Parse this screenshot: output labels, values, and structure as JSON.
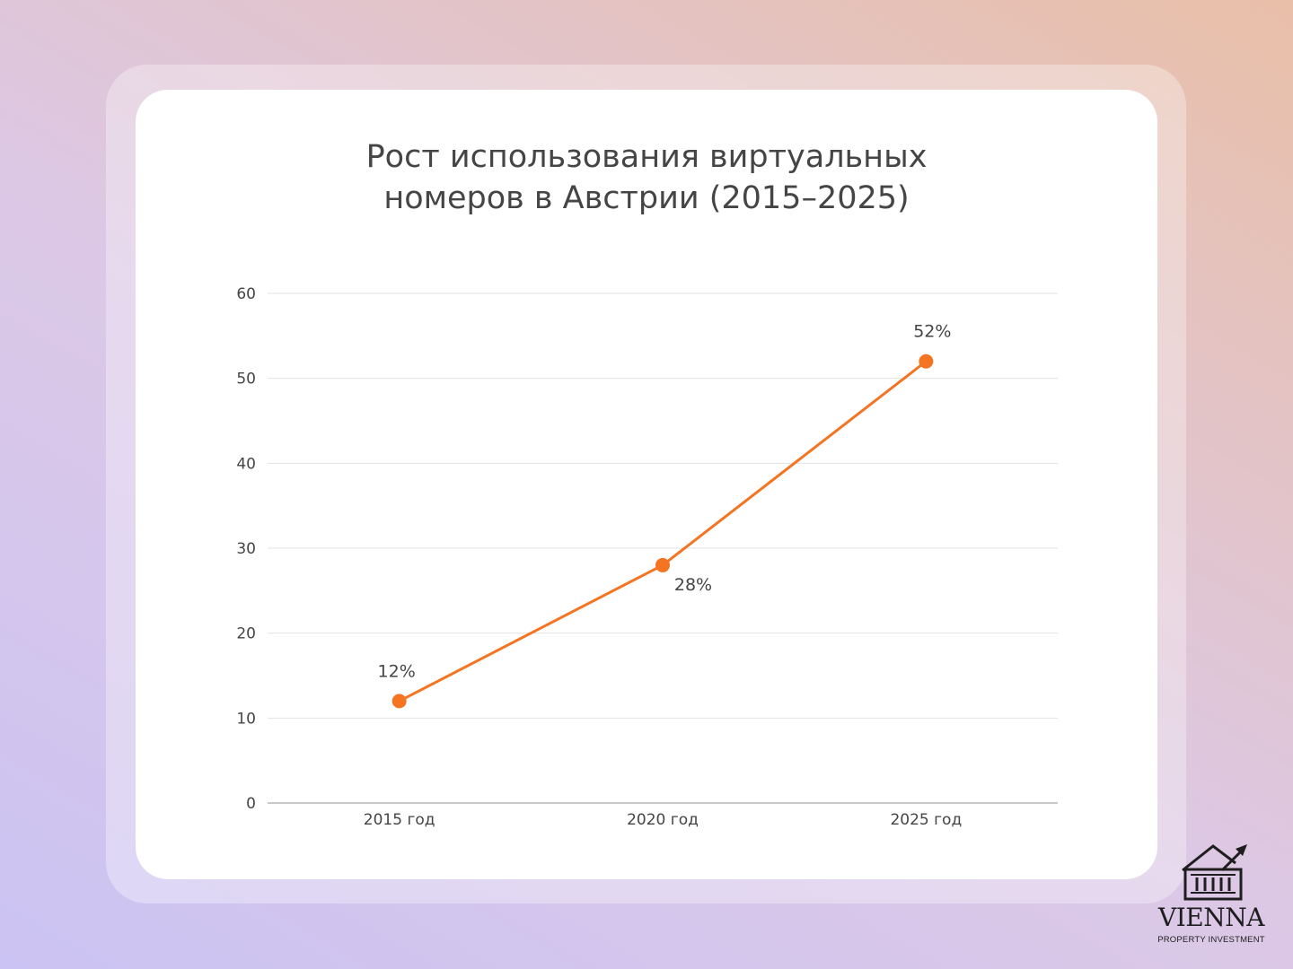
{
  "chart_data": {
    "type": "line",
    "title_lines": [
      "Рост использования виртуальных",
      "номеров в Австрии (2015–2025)"
    ],
    "categories": [
      "2015 год",
      "2020 год",
      "2025 год"
    ],
    "series": [
      {
        "values": [
          12,
          28,
          52
        ],
        "labels": [
          "12%",
          "28%",
          "52%"
        ],
        "color": "#f47421"
      }
    ],
    "yticks": [
      "0",
      "10",
      "20",
      "30",
      "40",
      "50",
      "60"
    ],
    "ylim": [
      0,
      60
    ],
    "grid": true,
    "gridline_color": "#e2e2e2",
    "axis_color": "#b5b5b5",
    "text_color": "#454545"
  },
  "brand": {
    "icon": "bank-building-with-rising-arrow-icon",
    "name": "VIENNA",
    "tagline": "PROPERTY INVESTMENT"
  }
}
